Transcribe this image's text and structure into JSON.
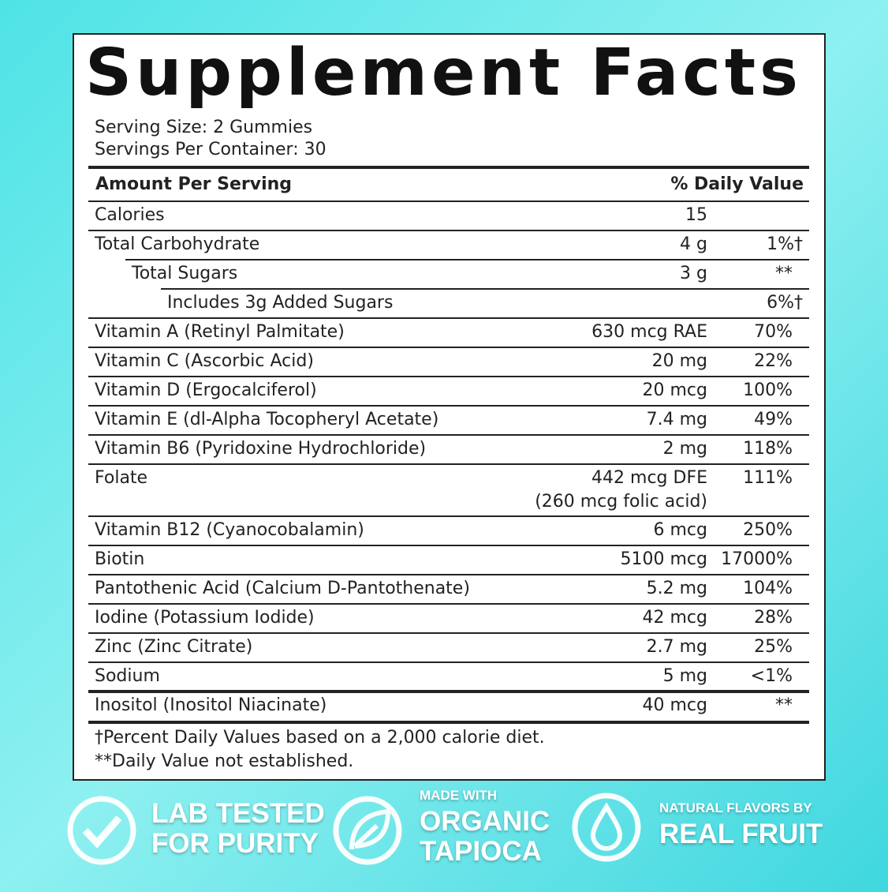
{
  "title": "Supplement Facts",
  "serving": [
    "Serving Size: 2 Gummies",
    "Servings Per Container: 30"
  ],
  "header": {
    "amount": "Amount Per Serving",
    "dv": "% Daily Value"
  },
  "rows": [
    {
      "label": "Calories",
      "amount": "15",
      "dv": null,
      "indent": 0
    },
    {
      "label": "Total Carbohydrate",
      "amount": "4 g",
      "dv": "1%†",
      "indent": 0
    },
    {
      "label": "Total Sugars",
      "amount": "3 g",
      "dv": "**",
      "indent": 1
    },
    {
      "label": "Includes 3g Added Sugars",
      "amount": null,
      "dv": "6%†",
      "indent": 2
    },
    {
      "label": "Vitamin A (Retinyl Palmitate)",
      "amount": "630 mcg RAE",
      "dv": "70%",
      "indent": 0
    },
    {
      "label": "Vitamin C (Ascorbic Acid)",
      "amount": "20 mg",
      "dv": "22%",
      "indent": 0
    },
    {
      "label": "Vitamin D (Ergocalciferol)",
      "amount": "20 mcg",
      "dv": "100%",
      "indent": 0
    },
    {
      "label": "Vitamin E (dl-Alpha Tocopheryl Acetate)",
      "amount": "7.4 mg",
      "dv": "49%",
      "indent": 0
    },
    {
      "label": "Vitamin B6 (Pyridoxine Hydrochloride)",
      "amount": "2 mg",
      "dv": "118%",
      "indent": 0
    },
    {
      "label": "Folate",
      "amount": "442 mcg DFE",
      "amount_note": "(260 mcg folic acid)",
      "dv": "111%",
      "indent": 0
    },
    {
      "label": "Vitamin B12 (Cyanocobalamin)",
      "amount": "6 mcg",
      "dv": "250%",
      "indent": 0
    },
    {
      "label": "Biotin",
      "amount": "5100 mcg",
      "dv": "17000%",
      "indent": 0
    },
    {
      "label": "Pantothenic Acid (Calcium D-Pantothenate)",
      "amount": "5.2 mg",
      "dv": "104%",
      "indent": 0
    },
    {
      "label": "Iodine (Potassium Iodide)",
      "amount": "42 mcg",
      "dv": "28%",
      "indent": 0
    },
    {
      "label": "Zinc (Zinc Citrate)",
      "amount": "2.7 mg",
      "dv": "25%",
      "indent": 0
    },
    {
      "label": "Sodium",
      "amount": "5 mg",
      "dv": "<1%",
      "indent": 0
    },
    {
      "label": "Inositol (Inositol Niacinate)",
      "amount": "40 mcg",
      "dv": "**",
      "indent": 0
    }
  ],
  "footnotes": [
    "†Percent Daily Values based on a 2,000 calorie diet.",
    "**Daily Value not established."
  ],
  "badges": [
    {
      "small": null,
      "big": [
        "LAB TESTED",
        "FOR PURITY"
      ]
    },
    {
      "small": "MADE WITH",
      "big": [
        "ORGANIC",
        "TAPIOCA"
      ]
    },
    {
      "small": "NATURAL FLAVORS BY",
      "big": [
        "REAL FRUIT"
      ]
    }
  ]
}
